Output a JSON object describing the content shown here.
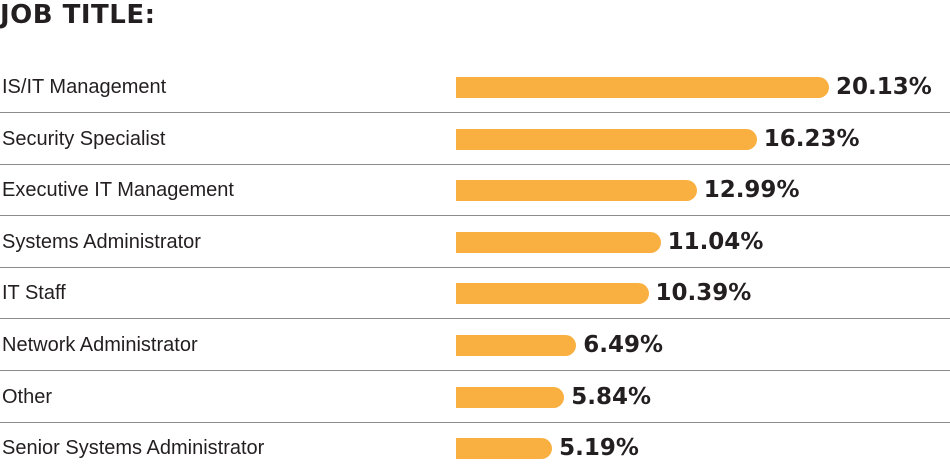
{
  "chart_data": {
    "type": "bar",
    "orientation": "horizontal",
    "title": "JOB TITLE:",
    "categories": [
      "IS/IT Management",
      "Security Specialist",
      "Executive IT Management",
      "Systems Administrator",
      "IT Staff",
      "Network Administrator",
      "Other",
      "Senior Systems Administrator"
    ],
    "values": [
      20.13,
      16.23,
      12.99,
      11.04,
      10.39,
      6.49,
      5.84,
      5.19
    ],
    "value_labels": [
      "20.13%",
      "16.23%",
      "12.99%",
      "11.04%",
      "10.39%",
      "6.49%",
      "5.84%",
      "5.19%"
    ],
    "unit": "%",
    "grid": false,
    "legend": "none",
    "bar_color": "#f9b040",
    "divider_color": "#8c8c8c",
    "text_color": "#231f20"
  }
}
